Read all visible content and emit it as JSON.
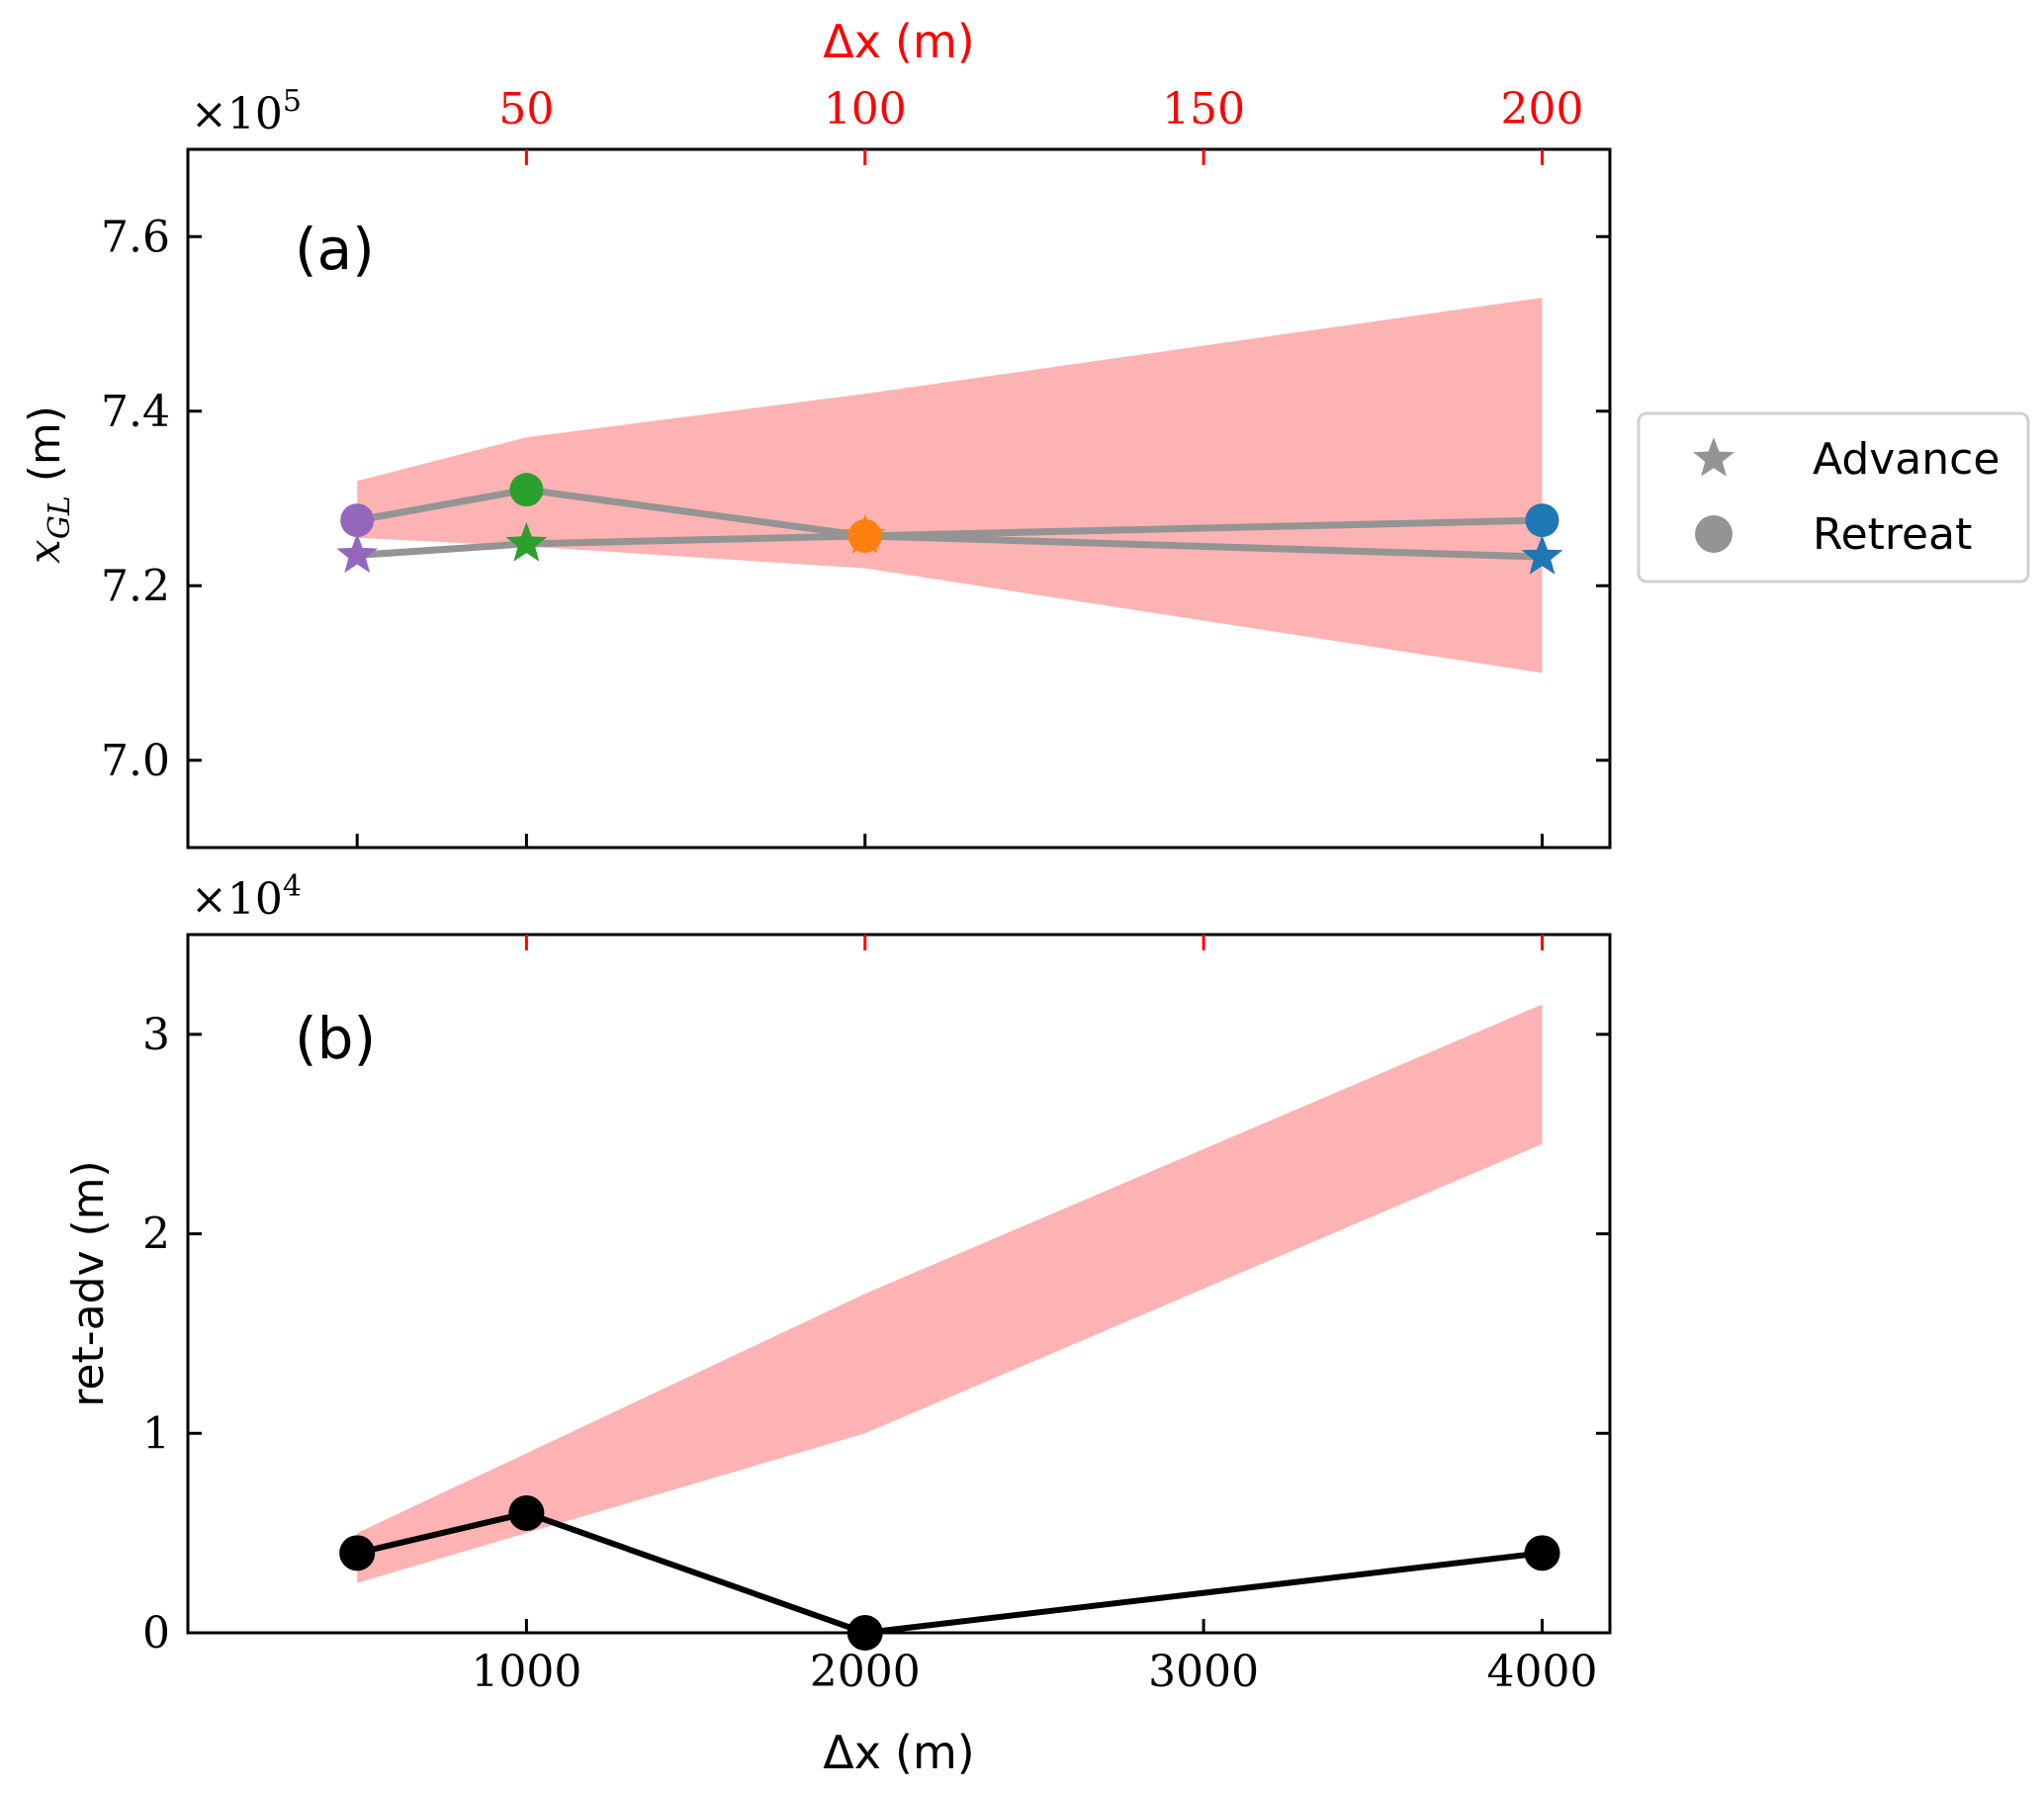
{
  "chart_data": [
    {
      "panel": "a",
      "type": "line",
      "panel_label": "(a)",
      "ylabel": "x_GL (m)",
      "ylabel_main": "x",
      "ylabel_sub": "GL",
      "ylabel_unit": "(m)",
      "y_multiplier": "×10",
      "y_multiplier_exp": "5",
      "ylim": [
        6.9,
        7.7
      ],
      "yticks": [
        7.0,
        7.2,
        7.4,
        7.6
      ],
      "ytick_labels": [
        "7.0",
        "7.2",
        "7.4",
        "7.6"
      ],
      "xlim": [
        0,
        4200
      ],
      "top_xlabel_main": "Δx",
      "top_xlabel_unit": "(m)",
      "top_xticks": [
        1000,
        2000,
        3000,
        4000
      ],
      "top_xtick_labels": [
        "50",
        "100",
        "150",
        "200"
      ],
      "top_axis_color": "#ff0000",
      "x": [
        500,
        1000,
        2000,
        4000
      ],
      "band_color": "#fdb3b3",
      "band_upper": [
        7.32,
        7.37,
        7.42,
        7.53
      ],
      "band_lower": [
        7.255,
        7.245,
        7.22,
        7.1
      ],
      "line_color": "#949494",
      "marker_colors": [
        "#9467bd",
        "#2ca02c",
        "#ff7f0e",
        "#1f77b4"
      ],
      "series": [
        {
          "name": "Advance",
          "marker": "star",
          "values": [
            7.235,
            7.248,
            7.257,
            7.233
          ]
        },
        {
          "name": "Retreat",
          "marker": "circle",
          "values": [
            7.275,
            7.31,
            7.257,
            7.275
          ]
        }
      ],
      "legend": {
        "placement": "right",
        "entries": [
          {
            "label": "Advance",
            "marker": "star"
          },
          {
            "label": "Retreat",
            "marker": "circle"
          }
        ]
      }
    },
    {
      "panel": "b",
      "type": "line",
      "panel_label": "(b)",
      "ylabel": "ret-adv (m)",
      "y_multiplier": "×10",
      "y_multiplier_exp": "4",
      "ylim": [
        0,
        3.5
      ],
      "yticks": [
        0,
        1,
        2,
        3
      ],
      "ytick_labels": [
        "0",
        "1",
        "2",
        "3"
      ],
      "xlim": [
        0,
        4200
      ],
      "xlabel_main": "Δx",
      "xlabel_unit": "(m)",
      "xticks": [
        1000,
        2000,
        3000,
        4000
      ],
      "xtick_labels": [
        "1000",
        "2000",
        "3000",
        "4000"
      ],
      "x": [
        500,
        1000,
        2000,
        4000
      ],
      "band_color": "#fdb3b3",
      "band_upper": [
        0.5,
        0.9,
        1.7,
        3.15
      ],
      "band_lower": [
        0.25,
        0.5,
        1.0,
        2.45
      ],
      "line_color": "#000000",
      "series": [
        {
          "values": [
            0.4,
            0.6,
            0.0,
            0.4
          ]
        }
      ]
    }
  ]
}
